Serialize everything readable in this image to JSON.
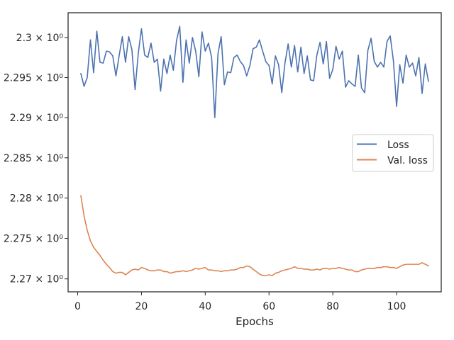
{
  "chart_data": {
    "type": "line",
    "title": "",
    "xlabel": "Epochs",
    "ylabel": "",
    "xlim": [
      -3,
      114
    ],
    "ylim": [
      2.2684,
      2.3031
    ],
    "x_ticks": [
      0,
      20,
      40,
      60,
      80,
      100
    ],
    "x_tick_labels": [
      "0",
      "20",
      "40",
      "60",
      "80",
      "100"
    ],
    "y_ticks": [
      2.27,
      2.275,
      2.28,
      2.285,
      2.29,
      2.295,
      2.3
    ],
    "y_tick_labels": [
      "2.27 × 10⁰",
      "2.275 × 10⁰",
      "2.28 × 10⁰",
      "2.285 × 10⁰",
      "2.29 × 10⁰",
      "2.295 × 10⁰",
      "2.3 × 10⁰"
    ],
    "y_scale": "log",
    "grid": false,
    "legend_position": "center-right",
    "series": [
      {
        "name": "Loss",
        "color": "#4c72b0",
        "x": [
          1,
          2,
          3,
          4,
          5,
          6,
          7,
          8,
          9,
          10,
          11,
          12,
          13,
          14,
          15,
          16,
          17,
          18,
          19,
          20,
          21,
          22,
          23,
          24,
          25,
          26,
          27,
          28,
          29,
          30,
          31,
          32,
          33,
          34,
          35,
          36,
          37,
          38,
          39,
          40,
          41,
          42,
          43,
          44,
          45,
          46,
          47,
          48,
          49,
          50,
          51,
          52,
          53,
          54,
          55,
          56,
          57,
          58,
          59,
          60,
          61,
          62,
          63,
          64,
          65,
          66,
          67,
          68,
          69,
          70,
          71,
          72,
          73,
          74,
          75,
          76,
          77,
          78,
          79,
          80,
          81,
          82,
          83,
          84,
          85,
          86,
          87,
          88,
          89,
          90,
          91,
          92,
          93,
          94,
          95,
          96,
          97,
          98,
          99,
          100,
          101,
          102,
          103,
          104,
          105,
          106,
          107,
          108,
          109,
          110
        ],
        "values": [
          2.2955,
          2.2939,
          2.295,
          2.2997,
          2.2956,
          2.3008,
          2.2969,
          2.2968,
          2.2983,
          2.2982,
          2.2977,
          2.2952,
          2.2977,
          2.3001,
          2.2969,
          2.3001,
          2.2985,
          2.2935,
          2.298,
          2.3011,
          2.2978,
          2.2975,
          2.2993,
          2.2969,
          2.2973,
          2.2933,
          2.2973,
          2.2955,
          2.2978,
          2.2959,
          2.2996,
          2.3014,
          2.2944,
          2.2997,
          2.2968,
          2.3,
          2.2983,
          2.2951,
          2.3007,
          2.2983,
          2.2993,
          2.2975,
          2.29,
          2.298,
          2.3001,
          2.2941,
          2.2957,
          2.2956,
          2.2975,
          2.2978,
          2.297,
          2.2965,
          2.2952,
          2.2965,
          2.2986,
          2.2988,
          2.2997,
          2.2983,
          2.297,
          2.2965,
          2.2942,
          2.2977,
          2.2966,
          2.2931,
          2.2968,
          2.2992,
          2.2963,
          2.299,
          2.2957,
          2.2988,
          2.2955,
          2.2977,
          2.2947,
          2.2946,
          2.2978,
          2.2994,
          2.2967,
          2.2995,
          2.2949,
          2.296,
          2.2989,
          2.2973,
          2.2983,
          2.2938,
          2.2946,
          2.2942,
          2.2939,
          2.2978,
          2.2937,
          2.2931,
          2.2984,
          2.2999,
          2.297,
          2.2963,
          2.2969,
          2.2963,
          2.2995,
          2.3002,
          2.2971,
          2.2914,
          2.2966,
          2.2943,
          2.2978,
          2.2963,
          2.2968,
          2.2952,
          2.2975,
          2.293,
          2.2967,
          2.2945
        ]
      },
      {
        "name": "Val. loss",
        "color": "#dd8452",
        "x": [
          1,
          2,
          3,
          4,
          5,
          6,
          7,
          8,
          9,
          10,
          11,
          12,
          13,
          14,
          15,
          16,
          17,
          18,
          19,
          20,
          21,
          22,
          23,
          24,
          25,
          26,
          27,
          28,
          29,
          30,
          31,
          32,
          33,
          34,
          35,
          36,
          37,
          38,
          39,
          40,
          41,
          42,
          43,
          44,
          45,
          46,
          47,
          48,
          49,
          50,
          51,
          52,
          53,
          54,
          55,
          56,
          57,
          58,
          59,
          60,
          61,
          62,
          63,
          64,
          65,
          66,
          67,
          68,
          69,
          70,
          71,
          72,
          73,
          74,
          75,
          76,
          77,
          78,
          79,
          80,
          81,
          82,
          83,
          84,
          85,
          86,
          87,
          88,
          89,
          90,
          91,
          92,
          93,
          94,
          95,
          96,
          97,
          98,
          99,
          100,
          101,
          102,
          103,
          104,
          105,
          106,
          107,
          108,
          109,
          110
        ],
        "values": [
          2.2803,
          2.2778,
          2.276,
          2.2747,
          2.2739,
          2.2734,
          2.2729,
          2.2723,
          2.2718,
          2.2714,
          2.2709,
          2.2707,
          2.2708,
          2.2708,
          2.2705,
          2.2708,
          2.2711,
          2.2712,
          2.2711,
          2.2714,
          2.2713,
          2.2711,
          2.271,
          2.271,
          2.2711,
          2.2711,
          2.2709,
          2.2709,
          2.2707,
          2.2708,
          2.2709,
          2.2709,
          2.271,
          2.2709,
          2.271,
          2.2711,
          2.2713,
          2.2712,
          2.2713,
          2.2714,
          2.2711,
          2.2711,
          2.271,
          2.271,
          2.2709,
          2.271,
          2.271,
          2.2711,
          2.2711,
          2.2712,
          2.2714,
          2.2714,
          2.2716,
          2.2715,
          2.2712,
          2.2709,
          2.2706,
          2.2704,
          2.2704,
          2.2705,
          2.2704,
          2.2707,
          2.2708,
          2.271,
          2.2711,
          2.2712,
          2.2713,
          2.2715,
          2.2713,
          2.2713,
          2.2712,
          2.2712,
          2.2711,
          2.2711,
          2.2712,
          2.2711,
          2.2713,
          2.2713,
          2.2712,
          2.2713,
          2.2713,
          2.2714,
          2.2713,
          2.2712,
          2.2711,
          2.2711,
          2.2709,
          2.2709,
          2.2711,
          2.2712,
          2.2713,
          2.2713,
          2.2713,
          2.2714,
          2.2714,
          2.2715,
          2.2715,
          2.2714,
          2.2714,
          2.2713,
          2.2715,
          2.2717,
          2.2718,
          2.2718,
          2.2718,
          2.2718,
          2.2718,
          2.272,
          2.2718,
          2.2716
        ]
      }
    ]
  }
}
